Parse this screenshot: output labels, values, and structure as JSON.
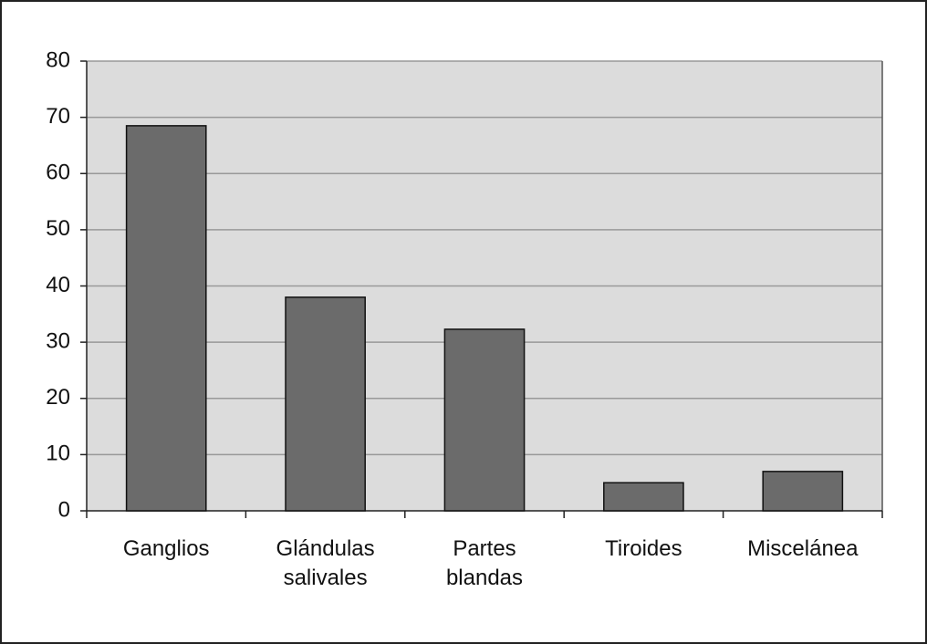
{
  "chart_data": {
    "type": "bar",
    "categories": [
      "Ganglios",
      "Glándulas salivales",
      "Partes blandas",
      "Tiroides",
      "Miscelánea"
    ],
    "values": [
      68.5,
      38,
      32.3,
      5,
      7
    ],
    "color": "#6b6b6b",
    "ylim": [
      0,
      80
    ],
    "yticks": [
      0,
      10,
      20,
      30,
      40,
      50,
      60,
      70,
      80
    ],
    "grid": true
  }
}
